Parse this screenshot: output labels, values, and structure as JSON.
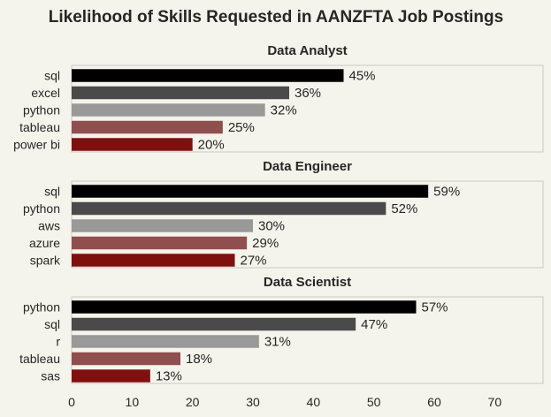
{
  "colors": {
    "background": "#f5f4ec",
    "frame": "#cfcfcf",
    "text": "#262626",
    "bar_palette": [
      "#000000",
      "#4a4a4a",
      "#999999",
      "#8f4f4f",
      "#7f1010"
    ]
  },
  "chart_data": {
    "type": "bar",
    "orientation": "horizontal",
    "title": "Likelihood of Skills Requested in AANZFTA Job Postings",
    "xlim": [
      0,
      78
    ],
    "xticks": [
      0,
      10,
      20,
      30,
      40,
      50,
      60,
      70
    ],
    "value_suffix": "%",
    "grid": false,
    "panels": [
      {
        "title": "Data Analyst",
        "categories": [
          "sql",
          "excel",
          "python",
          "tableau",
          "power bi"
        ],
        "values": [
          45,
          36,
          32,
          25,
          20
        ],
        "labels": [
          "45%",
          "36%",
          "32%",
          "25%",
          "20%"
        ]
      },
      {
        "title": "Data Engineer",
        "categories": [
          "sql",
          "python",
          "aws",
          "azure",
          "spark"
        ],
        "values": [
          59,
          52,
          30,
          29,
          27
        ],
        "labels": [
          "59%",
          "52%",
          "30%",
          "29%",
          "27%"
        ]
      },
      {
        "title": "Data Scientist",
        "categories": [
          "python",
          "sql",
          "r",
          "tableau",
          "sas"
        ],
        "values": [
          57,
          47,
          31,
          18,
          13
        ],
        "labels": [
          "57%",
          "47%",
          "31%",
          "18%",
          "13%"
        ]
      }
    ]
  }
}
